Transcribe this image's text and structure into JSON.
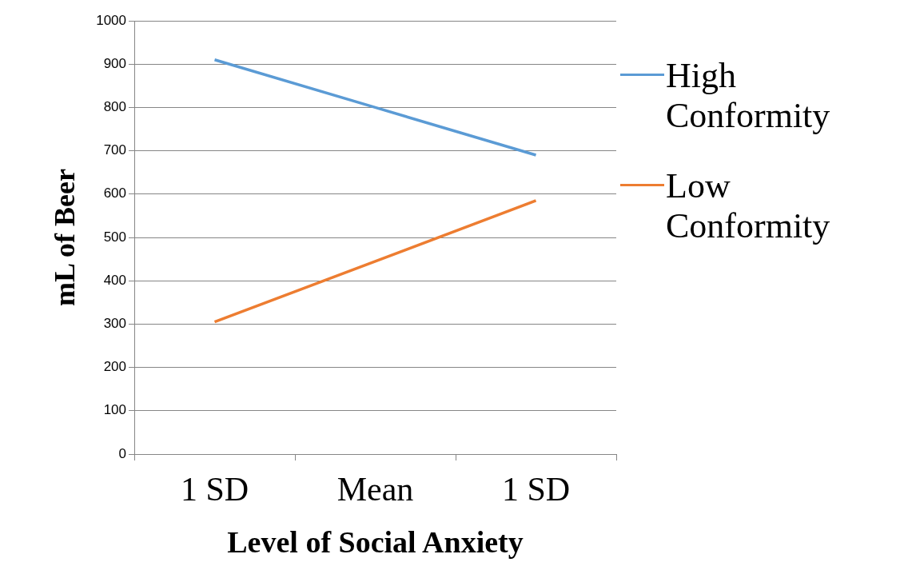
{
  "chart_data": {
    "type": "line",
    "xlabel": "Level of Social Anxiety",
    "ylabel": "mL of Beer",
    "categories": [
      "1 SD",
      "Mean",
      "1 SD"
    ],
    "series": [
      {
        "name": "High Conformity",
        "color": "#5b9bd5",
        "values": [
          910,
          800,
          690
        ]
      },
      {
        "name": "Low Conformity",
        "color": "#ed7d31",
        "values": [
          305,
          445,
          585
        ]
      }
    ],
    "ylim": [
      0,
      1000
    ],
    "yticks": [
      0,
      100,
      200,
      300,
      400,
      500,
      600,
      700,
      800,
      900,
      1000
    ],
    "grid": "y",
    "legend": "right",
    "marker": "none",
    "line_style": "solid"
  }
}
